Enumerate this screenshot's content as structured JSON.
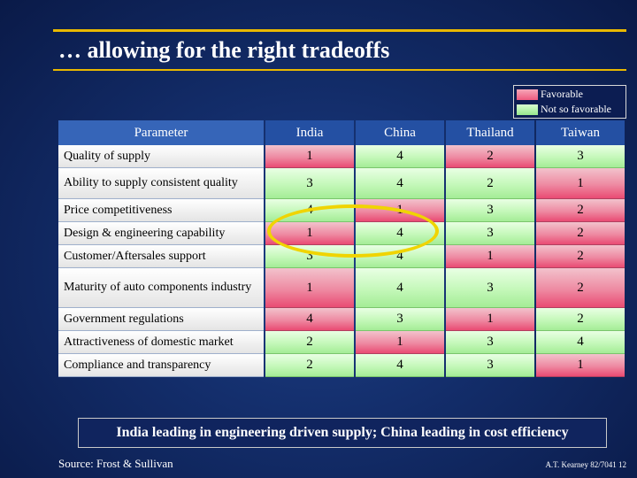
{
  "title": "… allowing for the right tradeoffs",
  "legend": {
    "favorable": "Favorable",
    "not_favorable": "Not so favorable"
  },
  "table": {
    "headers": [
      "Parameter",
      "India",
      "China",
      "Thailand",
      "Taiwan"
    ],
    "rows": [
      {
        "parameter": "Quality of supply",
        "values": [
          "1",
          "4",
          "2",
          "3"
        ],
        "favorable": [
          true,
          false,
          true,
          false
        ]
      },
      {
        "parameter": "Ability to supply consistent quality",
        "values": [
          "3",
          "4",
          "2",
          "1"
        ],
        "favorable": [
          false,
          false,
          false,
          true
        ]
      },
      {
        "parameter": "Price competitiveness",
        "values": [
          "4",
          "1",
          "3",
          "2"
        ],
        "favorable": [
          false,
          true,
          false,
          true
        ]
      },
      {
        "parameter": "Design & engineering capability",
        "values": [
          "1",
          "4",
          "3",
          "2"
        ],
        "favorable": [
          true,
          false,
          false,
          true
        ]
      },
      {
        "parameter": "Customer/Aftersales support",
        "values": [
          "3",
          "4",
          "1",
          "2"
        ],
        "favorable": [
          false,
          false,
          true,
          true
        ]
      },
      {
        "parameter": "Maturity of auto components industry",
        "values": [
          "1",
          "4",
          "3",
          "2"
        ],
        "favorable": [
          true,
          false,
          false,
          true
        ]
      },
      {
        "parameter": "Government regulations",
        "values": [
          "4",
          "3",
          "1",
          "2"
        ],
        "favorable": [
          true,
          false,
          true,
          false
        ]
      },
      {
        "parameter": "Attractiveness of domestic market",
        "values": [
          "2",
          "1",
          "3",
          "4"
        ],
        "favorable": [
          false,
          true,
          false,
          false
        ]
      },
      {
        "parameter": "Compliance and transparency",
        "values": [
          "2",
          "4",
          "3",
          "1"
        ],
        "favorable": [
          false,
          false,
          false,
          true
        ]
      }
    ]
  },
  "summary": "India leading in engineering driven supply; China leading in cost efficiency",
  "source": "Source:   Frost & Sullivan",
  "footer": "A.T. Kearney 82/7041   12",
  "colors": {
    "favorable": "#ef5a7f",
    "not_favorable": "#a4ec96",
    "accent_rule": "#e9b800",
    "highlight_circle": "#f0d400"
  }
}
